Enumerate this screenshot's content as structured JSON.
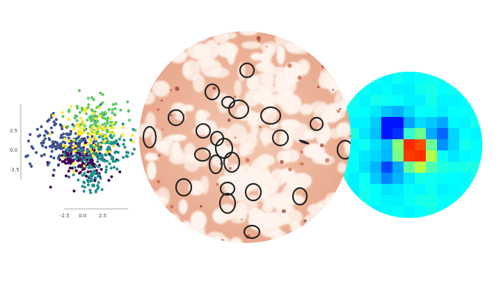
{
  "scatter": {
    "x_ticks": [
      "-2.5",
      "0.0",
      "2.5"
    ],
    "y_ticks": [
      "-2.5",
      "0.0",
      "2.5"
    ],
    "colors": [
      "#440154",
      "#3b528b",
      "#21918c",
      "#5ec962",
      "#fde725"
    ]
  },
  "tissue": {
    "stain_colors": [
      "#fff5ee",
      "#e9b49a",
      "#c4563d",
      "#8a2a1c"
    ],
    "outline_color": "#222222"
  },
  "heatmap": {
    "colormap": "jet",
    "background": "#00e5ff"
  }
}
